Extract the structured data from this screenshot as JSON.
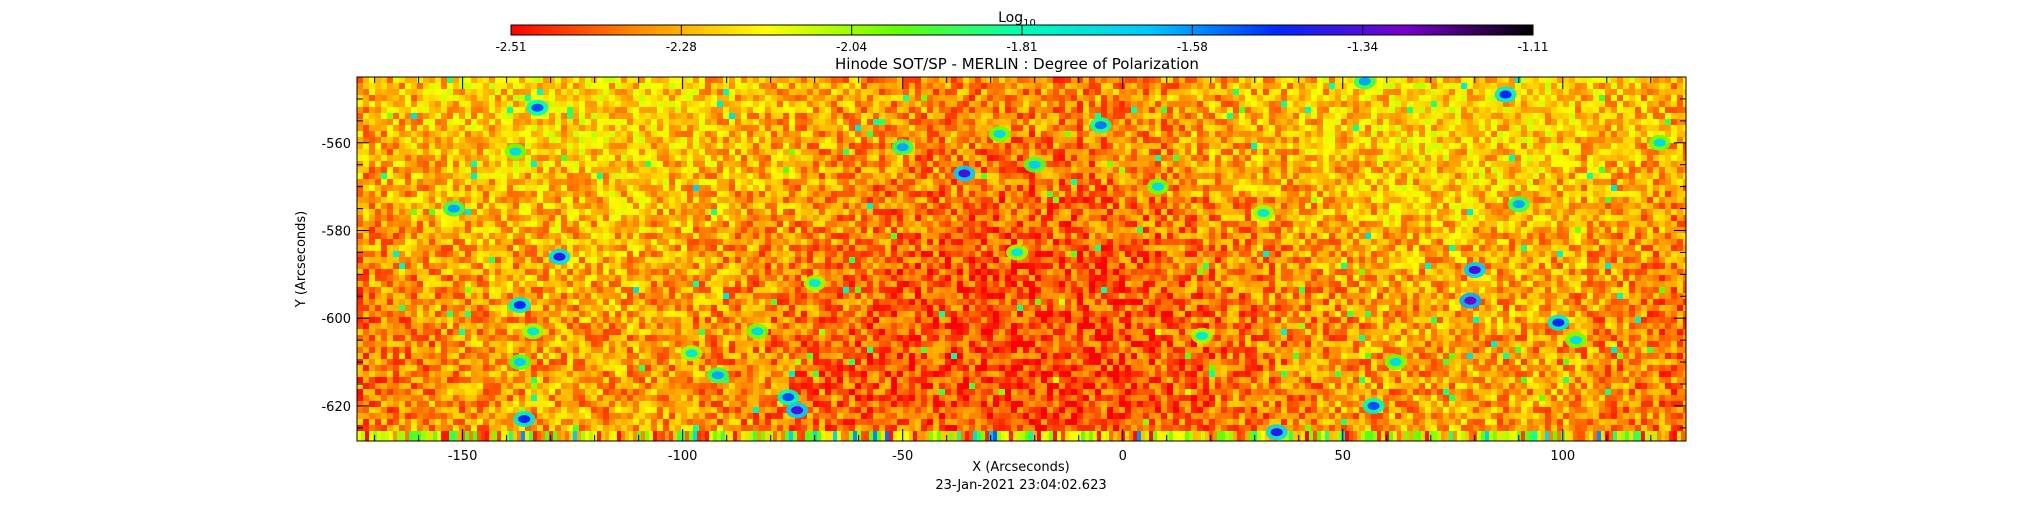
{
  "colorbar": {
    "title": "Log",
    "title_subscript": "10",
    "colormap": [
      "#ff0000",
      "#ff8c00",
      "#ffff00",
      "#66ff00",
      "#00ffb4",
      "#00c8ff",
      "#0028ff",
      "#7800c8",
      "#000000"
    ],
    "tick_labels": [
      "-2.51",
      "-2.28",
      "-2.04",
      "-1.81",
      "-1.58",
      "-1.34",
      "-1.11"
    ],
    "range": [
      -2.51,
      -1.11
    ]
  },
  "chart_data": {
    "type": "heatmap",
    "title": "Hinode SOT/SP - MERLIN : Degree of Polarization",
    "xlabel": "X (Arcseconds)",
    "ylabel": "Y (Arcseconds)",
    "xlim": [
      -174,
      128
    ],
    "ylim": [
      -628,
      -545
    ],
    "x_ticks": [
      -150,
      -100,
      -50,
      0,
      50,
      100
    ],
    "x_tick_labels": [
      "-150",
      "-100",
      "-50",
      "0",
      "50",
      "100"
    ],
    "y_ticks": [
      -560,
      -580,
      -600,
      -620
    ],
    "y_tick_labels": [
      "-560",
      "-580",
      "-600",
      "-620"
    ],
    "value_range": [
      -2.51,
      -1.11
    ],
    "typical_value": -2.32,
    "features": [
      {
        "x": -133,
        "y": -552,
        "value": -1.5
      },
      {
        "x": -138,
        "y": -562,
        "value": -1.7
      },
      {
        "x": -152,
        "y": -575,
        "value": -1.6
      },
      {
        "x": -128,
        "y": -586,
        "value": -1.4
      },
      {
        "x": -137,
        "y": -597,
        "value": -1.45
      },
      {
        "x": -134,
        "y": -603,
        "value": -1.75
      },
      {
        "x": -137,
        "y": -610,
        "value": -1.65
      },
      {
        "x": -136,
        "y": -623,
        "value": -1.45
      },
      {
        "x": -98,
        "y": -608,
        "value": -1.75
      },
      {
        "x": -92,
        "y": -613,
        "value": -1.6
      },
      {
        "x": -83,
        "y": -603,
        "value": -1.7
      },
      {
        "x": -76,
        "y": -618,
        "value": -1.5
      },
      {
        "x": -74,
        "y": -621,
        "value": -1.35
      },
      {
        "x": -36,
        "y": -567,
        "value": -1.35
      },
      {
        "x": -50,
        "y": -561,
        "value": -1.6
      },
      {
        "x": -28,
        "y": -558,
        "value": -1.7
      },
      {
        "x": -20,
        "y": -565,
        "value": -1.65
      },
      {
        "x": -5,
        "y": -556,
        "value": -1.55
      },
      {
        "x": 8,
        "y": -570,
        "value": -1.7
      },
      {
        "x": 32,
        "y": -576,
        "value": -1.75
      },
      {
        "x": 35,
        "y": -626,
        "value": -1.4
      },
      {
        "x": 55,
        "y": -546,
        "value": -1.6
      },
      {
        "x": 62,
        "y": -610,
        "value": -1.7
      },
      {
        "x": 57,
        "y": -620,
        "value": -1.5
      },
      {
        "x": 80,
        "y": -589,
        "value": -1.35
      },
      {
        "x": 79,
        "y": -596,
        "value": -1.3
      },
      {
        "x": 87,
        "y": -549,
        "value": -1.45
      },
      {
        "x": 90,
        "y": -574,
        "value": -1.6
      },
      {
        "x": 99,
        "y": -601,
        "value": -1.45
      },
      {
        "x": 103,
        "y": -605,
        "value": -1.7
      },
      {
        "x": 122,
        "y": -560,
        "value": -1.7
      },
      {
        "x": -70,
        "y": -592,
        "value": -1.75
      },
      {
        "x": -24,
        "y": -585,
        "value": -1.75
      },
      {
        "x": 18,
        "y": -604,
        "value": -1.75
      }
    ]
  },
  "footer": {
    "timestamp": "23-Jan-2021 23:04:02.623"
  }
}
